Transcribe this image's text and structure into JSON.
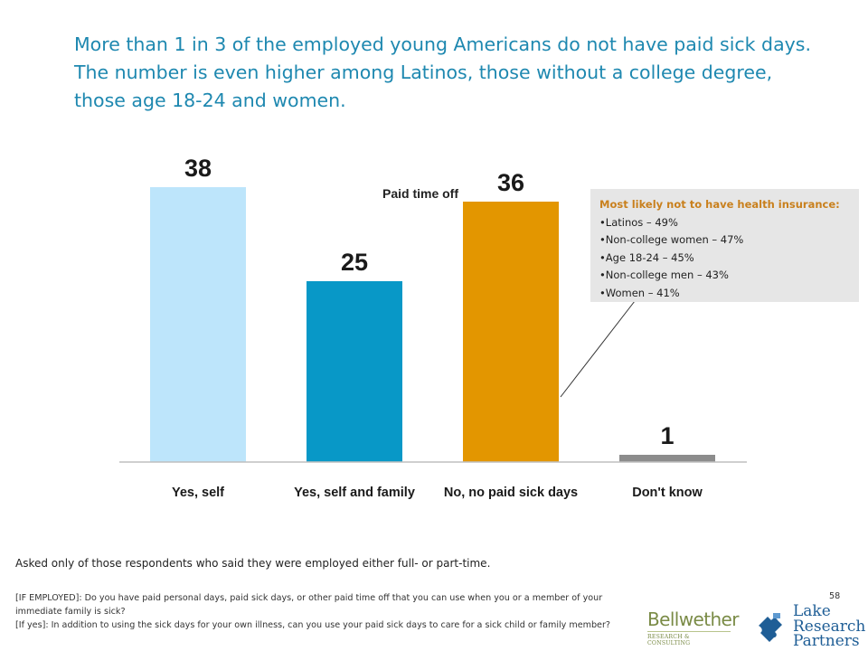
{
  "headline": "More than 1 in 3 of the employed young Americans do not have paid sick days. The number is even higher among Latinos, those without a college degree, those age 18-24 and women.",
  "chart_data": {
    "type": "bar",
    "title": "Paid time off",
    "categories": [
      "Yes, self",
      "Yes, self and family",
      "No, no paid sick days",
      "Don't know"
    ],
    "values": [
      38,
      25,
      36,
      1
    ],
    "value_labels": [
      "38",
      "25",
      "36",
      "1"
    ],
    "colors": [
      "#bde5fb",
      "#0898c7",
      "#e39600",
      "#8c8c8c"
    ],
    "ylim": [
      0,
      42
    ],
    "grid": false,
    "legend": "none"
  },
  "callout": {
    "title": "Most likely not to have health insurance:",
    "items": [
      "Latinos – 49%",
      "Non-college women – 47%",
      "Age 18-24 – 45%",
      "Non-college men – 43%",
      "Women – 41%"
    ]
  },
  "footnote": "Asked only of those respondents who said they were employed either full- or part-time.",
  "questions": [
    "[IF EMPLOYED]: Do you have paid personal days, paid sick days, or other paid time off that you can use when you or a member of your immediate family is sick?",
    "[If yes]: In addition to using the sick days for your own illness, can you use your paid sick days to care for a sick child or family member?"
  ],
  "page_number": "58",
  "logos": {
    "bellwether_name": "Bellwether",
    "bellwether_sub": "RESEARCH & CONSULTING",
    "lake_lines": [
      "Lake",
      "Research",
      "Partners"
    ],
    "lake_color": "#1f5e96",
    "bellwether_color": "#7a8b46"
  }
}
